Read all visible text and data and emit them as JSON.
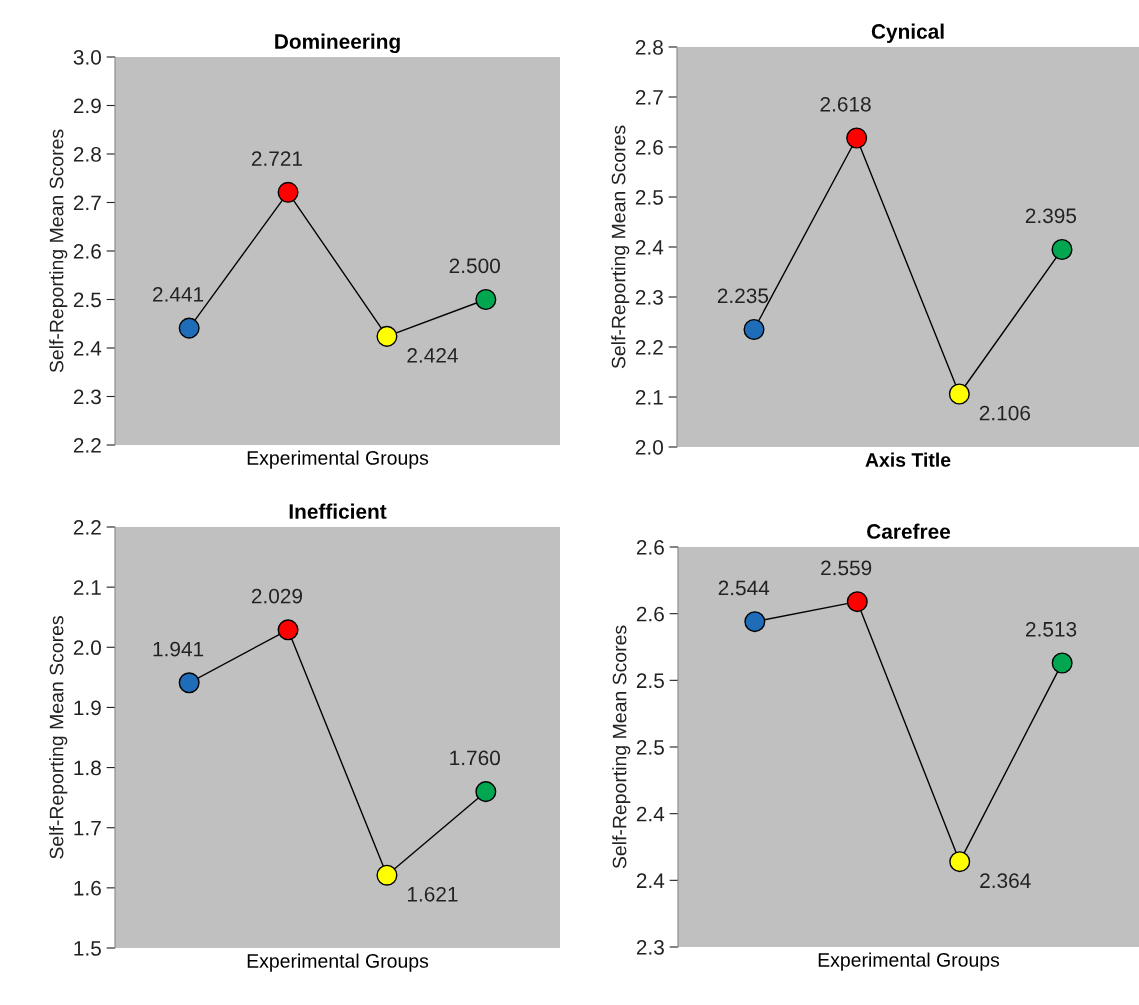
{
  "chart_data": [
    {
      "type": "line",
      "title": "Domineering",
      "xlabel": "Experimental Groups",
      "ylabel": "Self-Reporting Mean Scores",
      "categories": [
        null,
        null,
        null,
        null
      ],
      "series": [
        {
          "color": "#000000",
          "colors": [
            "#1f6cb8",
            "#ff0000",
            "#ffff00",
            "#00a650"
          ],
          "values": [
            2.441,
            2.721,
            2.424,
            2.5
          ]
        }
      ],
      "ylim": [
        2.2,
        3.0
      ],
      "yticks": [
        {
          "value": 2.2,
          "label": "2.2"
        },
        {
          "value": 2.3,
          "label": "2.3"
        },
        {
          "value": 2.4,
          "label": "2.4"
        },
        {
          "value": 2.5,
          "label": "2.5"
        },
        {
          "value": 2.6,
          "label": "2.6"
        },
        {
          "value": 2.7,
          "label": "2.7"
        },
        {
          "value": 2.8,
          "label": "2.8"
        },
        {
          "value": 2.9,
          "label": "2.9"
        },
        {
          "value": 3.0,
          "label": "3.0"
        }
      ],
      "value_labels": [
        "2.441",
        "2.721",
        "2.424",
        "2.500"
      ],
      "marker": "circle",
      "line_style": "solid",
      "grid": false,
      "legend": false,
      "tick_labels": "y"
    },
    {
      "type": "line",
      "title": "Cynical",
      "xlabel": "Axis Title",
      "ylabel": "Self-Reporting Mean Scores",
      "categories": [
        null,
        null,
        null,
        null
      ],
      "series": [
        {
          "color": "#000000",
          "colors": [
            "#1f6cb8",
            "#ff0000",
            "#ffff00",
            "#00a650"
          ],
          "values": [
            2.235,
            2.618,
            2.106,
            2.395
          ]
        }
      ],
      "ylim": [
        2.0,
        2.8
      ],
      "yticks": [
        {
          "value": 2.0,
          "label": "2.0"
        },
        {
          "value": 2.1,
          "label": "2.1"
        },
        {
          "value": 2.2,
          "label": "2.2"
        },
        {
          "value": 2.3,
          "label": "2.3"
        },
        {
          "value": 2.4,
          "label": "2.4"
        },
        {
          "value": 2.5,
          "label": "2.5"
        },
        {
          "value": 2.6,
          "label": "2.6"
        },
        {
          "value": 2.7,
          "label": "2.7"
        },
        {
          "value": 2.8,
          "label": "2.8"
        }
      ],
      "value_labels": [
        "2.235",
        "2.618",
        "2.106",
        "2.395"
      ],
      "marker": "circle",
      "line_style": "solid",
      "grid": false,
      "legend": false,
      "tick_labels": "y"
    },
    {
      "type": "line",
      "title": "Inefficient",
      "xlabel": "Experimental Groups",
      "ylabel": "Self-Reporting Mean Scores",
      "categories": [
        null,
        null,
        null,
        null
      ],
      "series": [
        {
          "color": "#000000",
          "colors": [
            "#1f6cb8",
            "#ff0000",
            "#ffff00",
            "#00a650"
          ],
          "values": [
            1.941,
            2.029,
            1.621,
            1.76
          ]
        }
      ],
      "ylim": [
        1.5,
        2.2
      ],
      "yticks": [
        {
          "value": 1.5,
          "label": "1.5"
        },
        {
          "value": 1.6,
          "label": "1.6"
        },
        {
          "value": 1.7,
          "label": "1.7"
        },
        {
          "value": 1.8,
          "label": "1.8"
        },
        {
          "value": 1.9,
          "label": "1.9"
        },
        {
          "value": 2.0,
          "label": "2.0"
        },
        {
          "value": 2.1,
          "label": "2.1"
        },
        {
          "value": 2.2,
          "label": "2.2"
        }
      ],
      "value_labels": [
        "1.941",
        "2.029",
        "1.621",
        "1.760"
      ],
      "marker": "circle",
      "line_style": "solid",
      "grid": false,
      "legend": false,
      "tick_labels": "y"
    },
    {
      "type": "line",
      "title": "Carefree",
      "xlabel": "Experimental Groups",
      "ylabel": "Self-Reporting Mean Scores",
      "categories": [
        null,
        null,
        null,
        null
      ],
      "series": [
        {
          "color": "#000000",
          "colors": [
            "#1f6cb8",
            "#ff0000",
            "#ffff00",
            "#00a650"
          ],
          "values": [
            2.544,
            2.559,
            2.364,
            2.513
          ]
        }
      ],
      "ylim": [
        2.3,
        2.6
      ],
      "yticks": [
        {
          "value": 2.3,
          "label": "2.3"
        },
        {
          "value": 2.35,
          "label": "2.4"
        },
        {
          "value": 2.4,
          "label": "2.4"
        },
        {
          "value": 2.45,
          "label": "2.5"
        },
        {
          "value": 2.5,
          "label": "2.5"
        },
        {
          "value": 2.55,
          "label": "2.6"
        },
        {
          "value": 2.6,
          "label": "2.6"
        }
      ],
      "value_labels": [
        "2.544",
        "2.559",
        "2.364",
        "2.513"
      ],
      "marker": "circle",
      "line_style": "solid",
      "grid": false,
      "legend": false,
      "tick_labels": "y"
    }
  ]
}
